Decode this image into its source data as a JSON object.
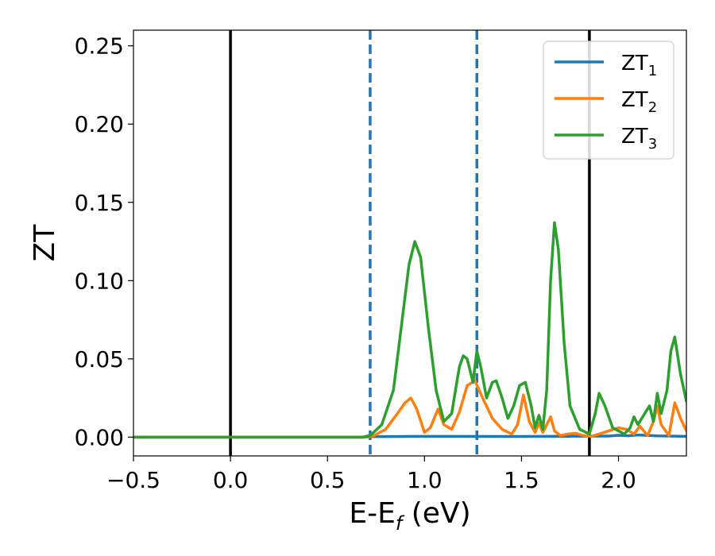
{
  "chart_data": {
    "type": "line",
    "xlabel": {
      "main": "E-E",
      "sub": "f",
      "tail": " (eV)"
    },
    "ylabel": "ZT",
    "xlim": [
      -0.5,
      2.35
    ],
    "ylim": [
      -0.012,
      0.26
    ],
    "x_ticks": [
      -0.5,
      0.0,
      0.5,
      1.0,
      1.5,
      2.0
    ],
    "x_tick_labels": [
      "−0.5",
      "0.0",
      "0.5",
      "1.0",
      "1.5",
      "2.0"
    ],
    "y_ticks": [
      0.0,
      0.05,
      0.1,
      0.15,
      0.2,
      0.25
    ],
    "y_tick_labels": [
      "0.00",
      "0.05",
      "0.10",
      "0.15",
      "0.20",
      "0.25"
    ],
    "grid": false,
    "legend_position": "top-right",
    "vertical_lines": [
      {
        "x": 0.0,
        "style": "solid",
        "color": "#000000"
      },
      {
        "x": 0.72,
        "style": "dashed",
        "color": "#1f77b4"
      },
      {
        "x": 1.27,
        "style": "dashed",
        "color": "#1f77b4"
      },
      {
        "x": 1.85,
        "style": "solid",
        "color": "#000000"
      }
    ],
    "series": [
      {
        "name": "ZT",
        "sub": "1",
        "color": "#1f77b4",
        "x": [
          -0.5,
          0.7,
          0.72,
          1.0,
          1.5,
          1.85,
          1.95,
          2.0,
          2.05,
          2.1,
          2.2,
          2.35
        ],
        "y": [
          0,
          0,
          0.0003,
          0.0005,
          0.0004,
          0.0006,
          0.0007,
          0.0012,
          0.0009,
          0.0014,
          0.0008,
          0.0005
        ]
      },
      {
        "name": "ZT",
        "sub": "2",
        "color": "#ff7f0e",
        "x": [
          -0.5,
          0.7,
          0.74,
          0.8,
          0.86,
          0.9,
          0.93,
          0.96,
          1.0,
          1.03,
          1.07,
          1.1,
          1.14,
          1.18,
          1.22,
          1.26,
          1.3,
          1.35,
          1.4,
          1.45,
          1.48,
          1.51,
          1.54,
          1.57,
          1.59,
          1.61,
          1.63,
          1.65,
          1.67,
          1.7,
          1.74,
          1.78,
          1.82,
          1.86,
          1.9,
          1.95,
          2.0,
          2.04,
          2.08,
          2.11,
          2.15,
          2.18,
          2.2,
          2.22,
          2.26,
          2.29,
          2.32,
          2.35
        ],
        "y": [
          0,
          0,
          0.001,
          0.005,
          0.015,
          0.022,
          0.025,
          0.018,
          0.003,
          0.006,
          0.018,
          0.008,
          0.005,
          0.016,
          0.033,
          0.036,
          0.025,
          0.012,
          0.005,
          0.002,
          0.008,
          0.027,
          0.01,
          0.003,
          0.009,
          0.003,
          0.008,
          0.013,
          0.004,
          0.001,
          0.002,
          0.0025,
          0.001,
          0.0005,
          0.002,
          0.004,
          0.006,
          0.005,
          0.002,
          0.007,
          0.001,
          0.01,
          0.02,
          0.008,
          0.001,
          0.022,
          0.012,
          0.004
        ]
      },
      {
        "name": "ZT",
        "sub": "3",
        "color": "#2ca02c",
        "x": [
          -0.5,
          0.68,
          0.72,
          0.78,
          0.84,
          0.88,
          0.92,
          0.95,
          0.98,
          1.02,
          1.06,
          1.1,
          1.14,
          1.18,
          1.2,
          1.22,
          1.25,
          1.27,
          1.29,
          1.32,
          1.35,
          1.37,
          1.4,
          1.43,
          1.46,
          1.49,
          1.52,
          1.55,
          1.57,
          1.59,
          1.61,
          1.63,
          1.65,
          1.67,
          1.69,
          1.72,
          1.75,
          1.8,
          1.85,
          1.88,
          1.9,
          1.93,
          1.97,
          2.0,
          2.03,
          2.06,
          2.08,
          2.1,
          2.13,
          2.16,
          2.18,
          2.2,
          2.22,
          2.25,
          2.27,
          2.29,
          2.32,
          2.35
        ],
        "y": [
          0,
          0,
          0.001,
          0.008,
          0.03,
          0.07,
          0.11,
          0.125,
          0.115,
          0.07,
          0.03,
          0.01,
          0.015,
          0.045,
          0.052,
          0.05,
          0.035,
          0.055,
          0.045,
          0.025,
          0.035,
          0.036,
          0.025,
          0.012,
          0.02,
          0.033,
          0.035,
          0.02,
          0.006,
          0.014,
          0.005,
          0.03,
          0.1,
          0.137,
          0.12,
          0.06,
          0.02,
          0.005,
          0.002,
          0.015,
          0.028,
          0.02,
          0.006,
          0.004,
          0.002,
          0.006,
          0.013,
          0.008,
          0.014,
          0.02,
          0.01,
          0.028,
          0.015,
          0.03,
          0.055,
          0.064,
          0.04,
          0.023
        ]
      }
    ]
  }
}
